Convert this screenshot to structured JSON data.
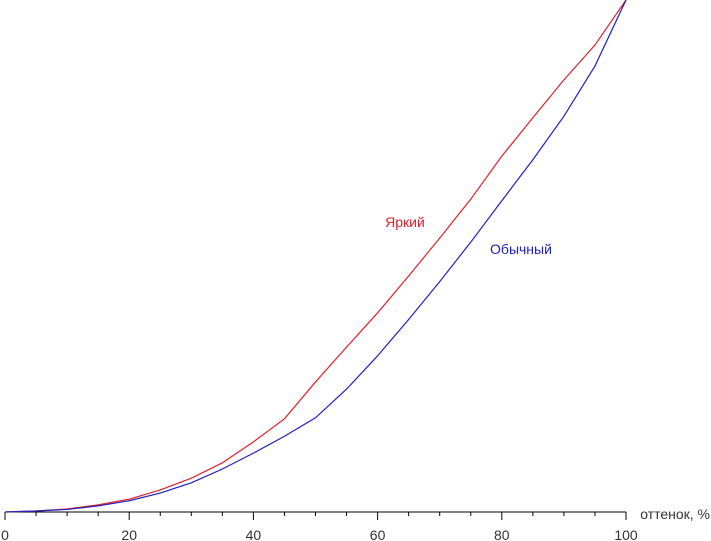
{
  "chart_data": {
    "type": "line",
    "x_label": "оттенок, %",
    "x": [
      0,
      5,
      10,
      15,
      20,
      25,
      30,
      35,
      40,
      45,
      50,
      55,
      60,
      65,
      70,
      75,
      80,
      85,
      90,
      95,
      100
    ],
    "series": [
      {
        "name": "Яркий",
        "color": "#e0202a",
        "values": [
          0,
          0.2,
          0.6,
          1.4,
          2.5,
          4.3,
          6.6,
          9.6,
          13.7,
          18.2,
          25.4,
          32.2,
          38.9,
          46.1,
          53.5,
          61.1,
          69.5,
          77.0,
          84.4,
          91.2,
          100
        ]
      },
      {
        "name": "Обычный",
        "color": "#2020c0",
        "values": [
          0,
          0.2,
          0.5,
          1.2,
          2.2,
          3.7,
          5.7,
          8.4,
          11.5,
          14.8,
          18.4,
          24.0,
          30.5,
          37.6,
          45.0,
          52.7,
          60.8,
          68.8,
          77.3,
          87.1,
          100
        ]
      }
    ],
    "xlim": [
      0,
      100
    ],
    "ylim": [
      0,
      100
    ],
    "xticks": [
      0,
      20,
      40,
      60,
      80,
      100
    ],
    "xminor_ticks": [
      5,
      10,
      15,
      25,
      30,
      35,
      45,
      50,
      55,
      65,
      70,
      75,
      85,
      90,
      95
    ]
  }
}
